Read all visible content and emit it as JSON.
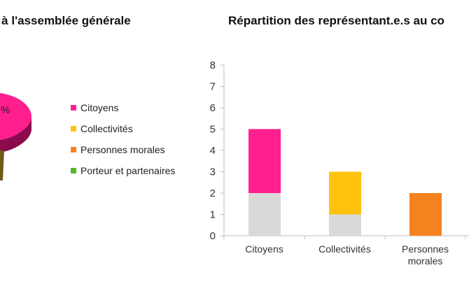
{
  "left_chart": {
    "title": "e à l'assemblée générale",
    "slice_label": "%",
    "legend": [
      {
        "label": "Citoyens",
        "color": "#ff1f8e"
      },
      {
        "label": "Collectivités",
        "color": "#ffc20e"
      },
      {
        "label": "Personnes morales",
        "color": "#f5821f"
      },
      {
        "label": "Porteur et partenaires",
        "color": "#57b52a"
      }
    ]
  },
  "chart_data": {
    "type": "bar",
    "stacked": true,
    "title": "Répartition des représentant.e.s au co",
    "categories": [
      "Citoyens",
      "Collectivités",
      "Personnes morales"
    ],
    "category_lines": [
      [
        "Citoyens"
      ],
      [
        "Collectivités"
      ],
      [
        "Personnes",
        "morales"
      ]
    ],
    "series": [
      {
        "values": [
          2,
          1,
          0
        ],
        "color": "#d9d9d9"
      },
      {
        "values": [
          3,
          2,
          2
        ],
        "colors": [
          "#ff1f8e",
          "#ffc20e",
          "#f5821f"
        ]
      }
    ],
    "ylim": [
      0,
      8
    ],
    "yticks": [
      0,
      1,
      2,
      3,
      4,
      5,
      6,
      7,
      8
    ],
    "grid": false,
    "xlabel": "",
    "ylabel": ""
  }
}
